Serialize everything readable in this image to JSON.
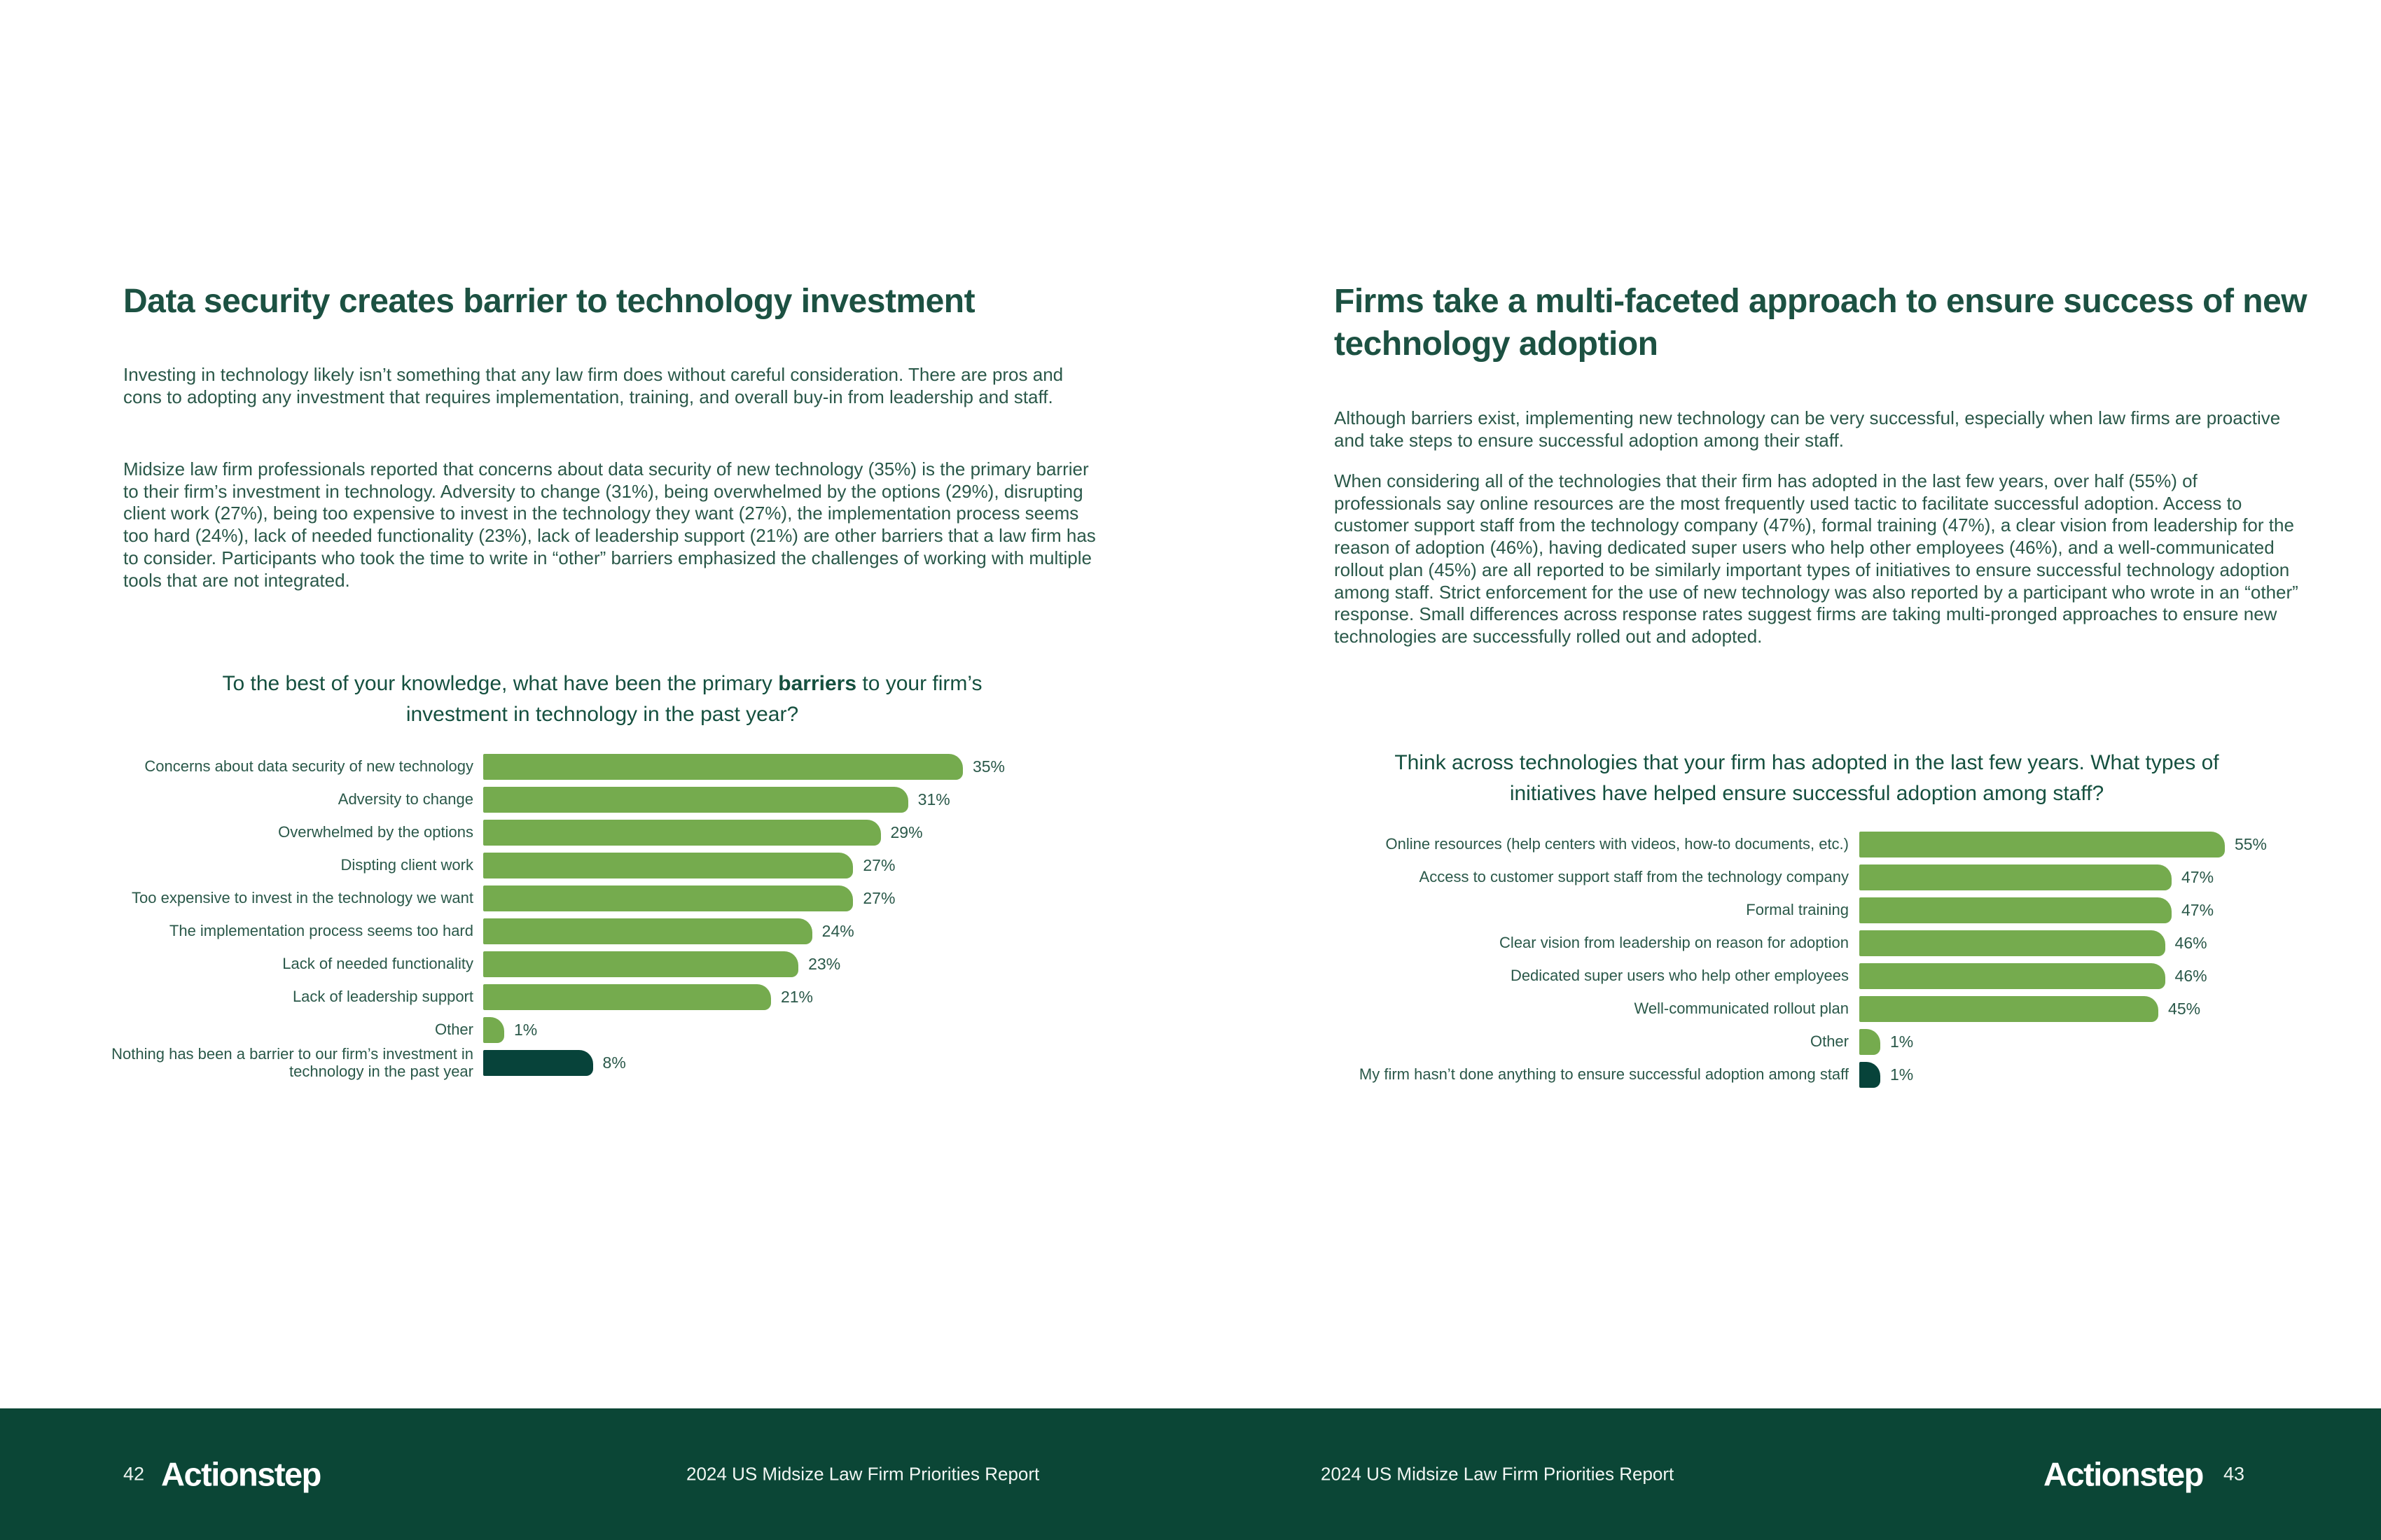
{
  "colors": {
    "bar_green": "#75ab4e",
    "bar_dark": "#07433a",
    "footer_bg": "#0b4636",
    "heading_text": "#1c5142",
    "body_text": "#2a5849"
  },
  "left_page": {
    "title": "Data security creates barrier to technology investment",
    "paragraphs": [
      "Investing in technology likely isn’t something that any law firm does without careful consideration. There are pros and cons to adopting any investment that requires implementation, training, and overall buy-in from leadership and staff.",
      "Midsize law firm professionals reported that concerns about data security of new technology (35%) is the primary barrier to their firm’s investment in technology. Adversity to change (31%), being overwhelmed by the options (29%), disrupting client work (27%), being too expensive to invest in the technology they want (27%), the implementation process seems too hard (24%), lack of needed functionality (23%), lack of leadership support (21%) are other barriers that a law firm has to consider. Participants who took the time to write in “other” barriers emphasized the challenges of working with multiple tools that are not integrated."
    ],
    "chart_title": {
      "line1_pre": "To the best of your knowledge, what have been the primary ",
      "line1_bold": "barriers",
      "line1_post": " to your firm’s",
      "line2": "investment in technology in the past year?"
    }
  },
  "right_page": {
    "title": "Firms take a multi-faceted approach to ensure success of new technology adoption",
    "paragraphs": [
      "Although barriers exist, implementing new technology can be very successful, especially when law firms are proactive and take steps to ensure successful adoption among their staff.",
      "When considering all of the technologies that their firm has adopted in the last few years, over half (55%) of professionals say online resources are the most frequently used tactic to facilitate successful adoption. Access to customer support staff from the technology company (47%), formal training (47%), a clear vision from leadership for the reason of adoption (46%), having dedicated super users who help other employees (46%), and a well-communicated rollout plan (45%) are all reported to be similarly important types of initiatives to ensure successful technology adoption among staff. Strict enforcement for the use of new technology was also reported by a participant who wrote in an “other” response. Small differences across response rates suggest firms are taking multi-pronged approaches to ensure new technologies are successfully rolled out and adopted."
    ],
    "chart_title": {
      "line1": "Think across technologies that your firm has adopted in the last few years. What types of",
      "line2": "initiatives have helped ensure successful adoption among staff?"
    }
  },
  "chart_data": [
    {
      "type": "bar",
      "orientation": "horizontal",
      "title": "To the best of your knowledge, what have been the primary barriers to your firm’s investment in technology in the past year?",
      "categories": [
        "Concerns about data security of new technology",
        "Adversity to change",
        "Overwhelmed by the options",
        "Dispting client work",
        "Too expensive to invest in the technology we want",
        "The implementation process seems too hard",
        "Lack of needed functionality",
        "Lack of leadership support",
        "Other",
        "Nothing has been a barrier to our firm’s investment in technology in the past year"
      ],
      "values": [
        35,
        31,
        29,
        27,
        27,
        24,
        23,
        21,
        1,
        8
      ],
      "value_suffix": "%",
      "dark_rows": [
        9
      ],
      "xlim": [
        0,
        35
      ],
      "grid": false,
      "data_labels": true
    },
    {
      "type": "bar",
      "orientation": "horizontal",
      "title": "Think across technologies that your firm has adopted in the last few years. What types of initiatives have helped ensure successful adoption among staff?",
      "categories": [
        "Online resources (help centers with videos, how-to documents, etc.)",
        "Access to customer support staff from the technology company",
        "Formal training",
        "Clear vision from leadership on reason for adoption",
        "Dedicated super users who help other employees",
        "Well-communicated rollout plan",
        "Other",
        "My firm hasn’t done anything to ensure successful adoption among staff"
      ],
      "values": [
        55,
        47,
        47,
        46,
        46,
        45,
        1,
        1
      ],
      "value_suffix": "%",
      "dark_rows": [
        7
      ],
      "xlim": [
        0,
        55
      ],
      "grid": false,
      "data_labels": true
    }
  ],
  "footer": {
    "page_number_left": "42",
    "page_number_right": "43",
    "logo_text": "Actionstep",
    "report_title_left": "2024 US Midsize Law Firm Priorities Report",
    "report_title_right": "2024 US Midsize Law Firm Priorities Report"
  }
}
